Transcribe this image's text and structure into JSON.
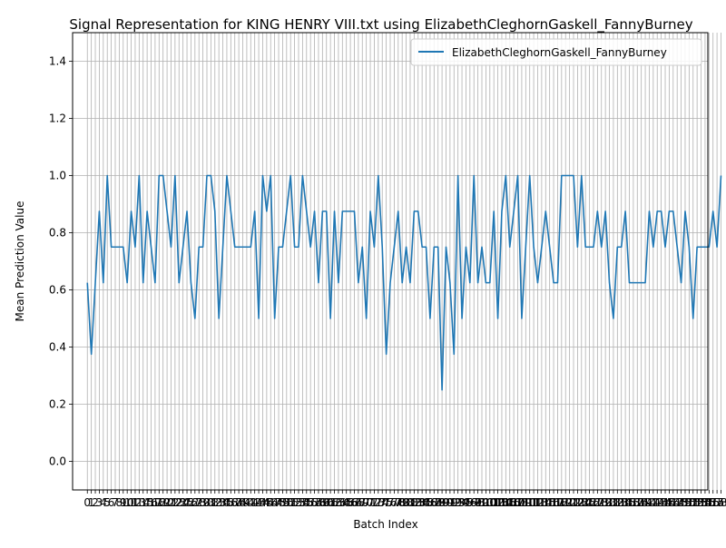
{
  "chart_data": {
    "type": "line",
    "title": "Signal Representation for KING HENRY VIII.txt using ElizabethCleghornGaskell_FannyBurney",
    "xlabel": "Batch Index",
    "ylabel": "Mean Prediction Value",
    "xlim": [
      -3.7,
      155.7
    ],
    "ylim": [
      -0.1,
      1.5
    ],
    "yticks": [
      0.0,
      0.2,
      0.4,
      0.6,
      0.8,
      1.0,
      1.2,
      1.4
    ],
    "ytick_labels": [
      "0.0",
      "0.2",
      "0.4",
      "0.6",
      "0.8",
      "1.0",
      "1.2",
      "1.4"
    ],
    "grid": true,
    "legend_position": "top-right",
    "series": [
      {
        "name": "ElizabethCleghornGaskell_FannyBurney",
        "color": "#1f77b4",
        "values": [
          0.625,
          0.375,
          0.625,
          0.875,
          0.625,
          1.0,
          0.75,
          0.75,
          0.75,
          0.75,
          0.625,
          0.875,
          0.75,
          1.0,
          0.625,
          0.875,
          0.75,
          0.625,
          1.0,
          1.0,
          0.875,
          0.75,
          1.0,
          0.625,
          0.75,
          0.875,
          0.625,
          0.5,
          0.75,
          0.75,
          1.0,
          1.0,
          0.875,
          0.5,
          0.75,
          1.0,
          0.875,
          0.75,
          0.75,
          0.75,
          0.75,
          0.75,
          0.875,
          0.5,
          1.0,
          0.875,
          1.0,
          0.5,
          0.75,
          0.75,
          0.875,
          1.0,
          0.75,
          0.75,
          1.0,
          0.875,
          0.75,
          0.875,
          0.625,
          0.875,
          0.875,
          0.5,
          0.875,
          0.625,
          0.875,
          0.875,
          0.875,
          0.875,
          0.625,
          0.75,
          0.5,
          0.875,
          0.75,
          1.0,
          0.75,
          0.375,
          0.625,
          0.75,
          0.875,
          0.625,
          0.75,
          0.625,
          0.875,
          0.875,
          0.75,
          0.75,
          0.5,
          0.75,
          0.75,
          0.25,
          0.75,
          0.625,
          0.375,
          1.0,
          0.5,
          0.75,
          0.625,
          1.0,
          0.625,
          0.75,
          0.625,
          0.625,
          0.875,
          0.5,
          0.875,
          1.0,
          0.75,
          0.875,
          1.0,
          0.5,
          0.75,
          1.0,
          0.75,
          0.625,
          0.75,
          0.875,
          0.75,
          0.625,
          0.625,
          1.0,
          1.0,
          1.0,
          1.0,
          0.75,
          1.0,
          0.75,
          0.75,
          0.75,
          0.875,
          0.75,
          0.875,
          0.625,
          0.5,
          0.75,
          0.75,
          0.875,
          0.625,
          0.625,
          0.625,
          0.625,
          0.625,
          0.875,
          0.75,
          0.875,
          0.875,
          0.75,
          0.875,
          0.875,
          0.75,
          0.625,
          0.875,
          0.75,
          0.5,
          0.75,
          0.75,
          0.75,
          0.75,
          0.875,
          0.75,
          1.0
        ]
      }
    ]
  }
}
